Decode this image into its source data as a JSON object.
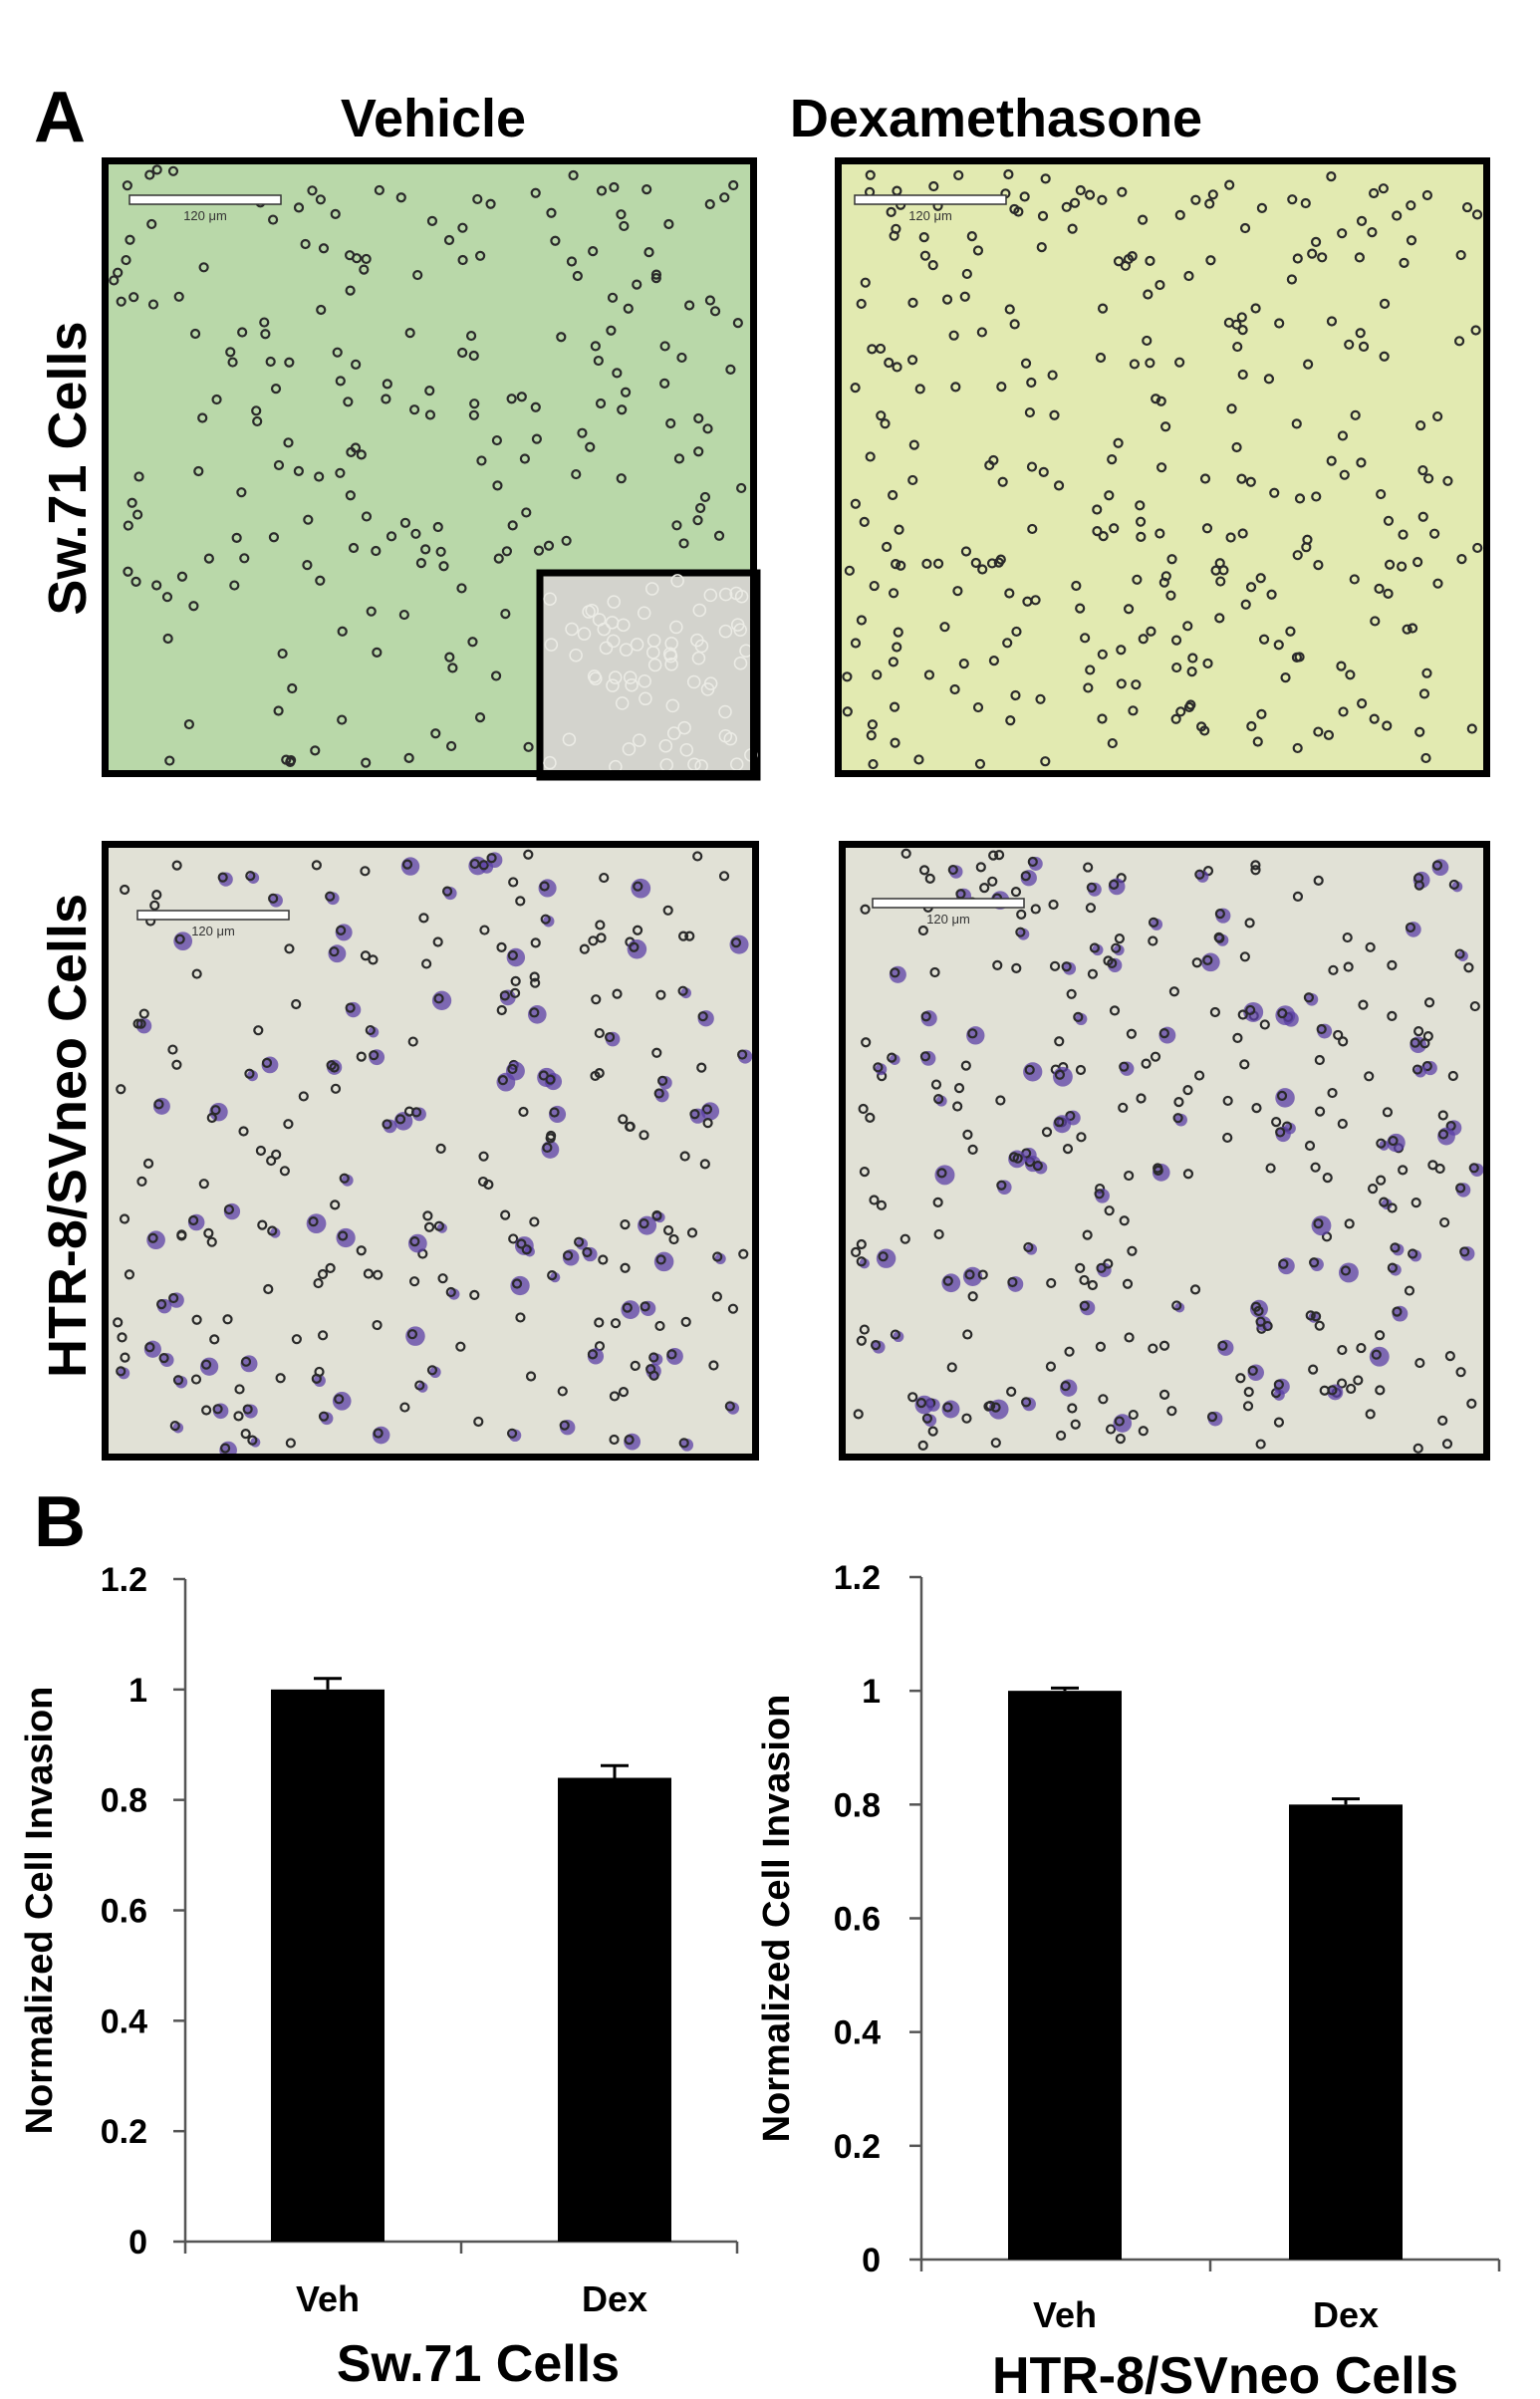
{
  "panel_a": {
    "letter": "A",
    "columns": [
      "Vehicle",
      "Dexamethasone"
    ],
    "rows": [
      "Sw.71 Cells",
      "HTR-8/SVneo Cells"
    ],
    "scale_bar_label": "120 μm",
    "colors": {
      "sw71_vehicle_bg": "#b9d8a9",
      "sw71_dex_bg": "#e2eab1",
      "htr_bg": "#e1e1d6",
      "cell_ring": "#2a2a2a",
      "htr_cell_stain": "#5b3fa6",
      "inset_bg": "#d3d3cd"
    }
  },
  "panel_b": {
    "letter": "B"
  },
  "chart_data": [
    {
      "type": "bar",
      "title": "",
      "xlabel": "Sw.71 Cells",
      "ylabel": "Normalized Cell Invasion",
      "categories": [
        "Veh",
        "Dex"
      ],
      "values": [
        1.0,
        0.84
      ],
      "errors": [
        0.02,
        0.022
      ],
      "ylim": [
        0,
        1.2
      ],
      "yticks": [
        "0",
        "0.2",
        "0.4",
        "0.6",
        "0.8",
        "1",
        "1.2"
      ],
      "bar_color": "#000000",
      "grid": false
    },
    {
      "type": "bar",
      "title": "",
      "xlabel": "HTR-8/SVneo Cells",
      "ylabel": "Normalized Cell Invasion",
      "categories": [
        "Veh",
        "Dex"
      ],
      "values": [
        1.0,
        0.8
      ],
      "errors": [
        0.005,
        0.01
      ],
      "ylim": [
        0,
        1.2
      ],
      "yticks": [
        "0",
        "0.2",
        "0.4",
        "0.6",
        "0.8",
        "1",
        "1.2"
      ],
      "bar_color": "#000000",
      "grid": false
    }
  ]
}
